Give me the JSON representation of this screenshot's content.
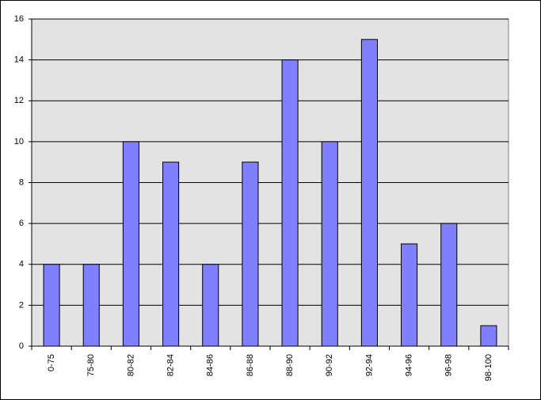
{
  "chart_data": {
    "type": "bar",
    "categories": [
      "0-75",
      "75-80",
      "80-82",
      "82-84",
      "84-86",
      "86-88",
      "88-90",
      "90-92",
      "92-94",
      "94-96",
      "96-98",
      "98-100"
    ],
    "values": [
      4,
      4,
      10,
      9,
      4,
      9,
      14,
      10,
      15,
      5,
      6,
      1
    ],
    "color": "#8080ff",
    "ylim": [
      0,
      16
    ],
    "yticks": [
      0,
      2,
      4,
      6,
      8,
      10,
      12,
      14,
      16
    ],
    "grid": true
  }
}
